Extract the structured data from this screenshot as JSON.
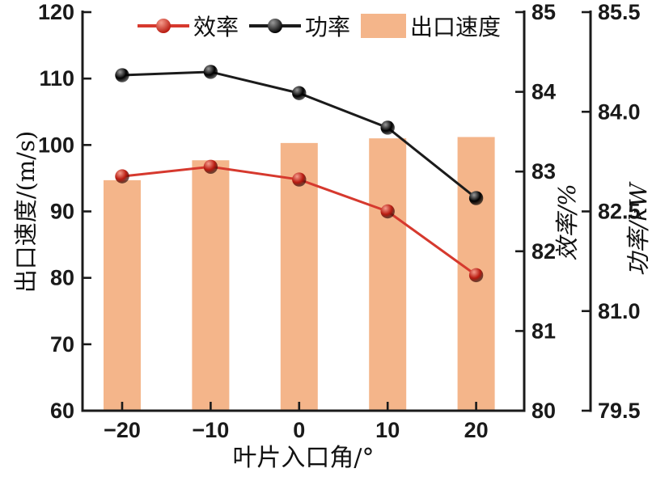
{
  "chart_data": {
    "type": "combo",
    "title": "",
    "xlabel": "叶片入口角/°",
    "x_tick_labels": [
      "−20",
      "−10",
      "0",
      "10",
      "20"
    ],
    "categories": [
      -20,
      -10,
      0,
      10,
      20
    ],
    "series": [
      {
        "name": "效率",
        "type": "line",
        "axis": "efficiency",
        "values": [
          82.94,
          83.06,
          82.9,
          82.5,
          81.7
        ]
      },
      {
        "name": "功率",
        "type": "line",
        "axis": "power",
        "values": [
          84.55,
          84.6,
          84.28,
          83.76,
          82.7
        ]
      },
      {
        "name": "出口速度",
        "type": "bar",
        "axis": "velocity",
        "values": [
          94.7,
          97.7,
          100.3,
          101.0,
          101.2
        ]
      }
    ],
    "axes": {
      "velocity": {
        "label": "出口速度/(m/s)",
        "min": 60,
        "max": 120,
        "tick_labels": [
          "60",
          "70",
          "80",
          "90",
          "100",
          "110",
          "120"
        ],
        "side": "left"
      },
      "efficiency": {
        "label": "效率/%",
        "min": 80,
        "max": 85,
        "tick_labels": [
          "80",
          "81",
          "82",
          "83",
          "84",
          "85"
        ],
        "side": "right"
      },
      "power": {
        "label": "功率/kW",
        "min": 79.5,
        "max": 85.5,
        "tick_labels": [
          "79.5",
          "81.0",
          "82.5",
          "84.0",
          "85.5"
        ],
        "side": "right-outer"
      }
    },
    "legend": {
      "position": "top",
      "items": [
        "效率",
        "功率",
        "出口速度"
      ]
    },
    "grid": false
  },
  "colors": {
    "axis": "#1a1a1a",
    "bar_fill": "#f4b58a",
    "efficiency_line": "#d6392e",
    "efficiency_ball_light": "#f59c8c",
    "efficiency_ball_dark": "#b81a10",
    "power_line": "#1b1b1b",
    "power_ball_light": "#9a9a9a",
    "power_ball_dark": "#000000"
  }
}
